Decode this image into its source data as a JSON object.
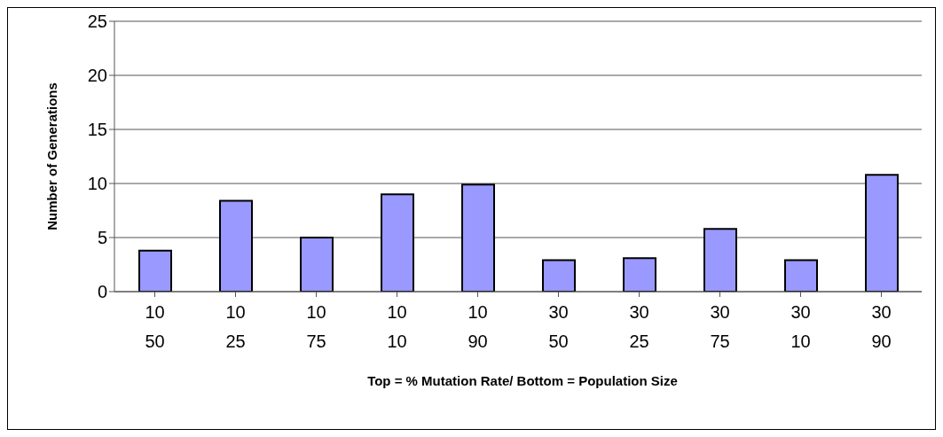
{
  "chart_data": {
    "type": "bar",
    "categories": [
      "10\n50",
      "10\n25",
      "10\n75",
      "10\n10",
      "10\n90",
      "30\n50",
      "30\n25",
      "30\n75",
      "30\n10",
      "30\n90"
    ],
    "values": [
      3.8,
      8.4,
      5.0,
      9.0,
      9.9,
      2.9,
      3.1,
      5.8,
      2.9,
      10.8
    ],
    "color": "#9999ff",
    "ylim": [
      0,
      25
    ],
    "yticks": [
      0,
      5,
      10,
      15,
      20,
      25
    ],
    "grid": "y",
    "xlabel": "Top = % Mutation Rate/ Bottom = Population Size",
    "ylabel": "Number of Generations"
  }
}
